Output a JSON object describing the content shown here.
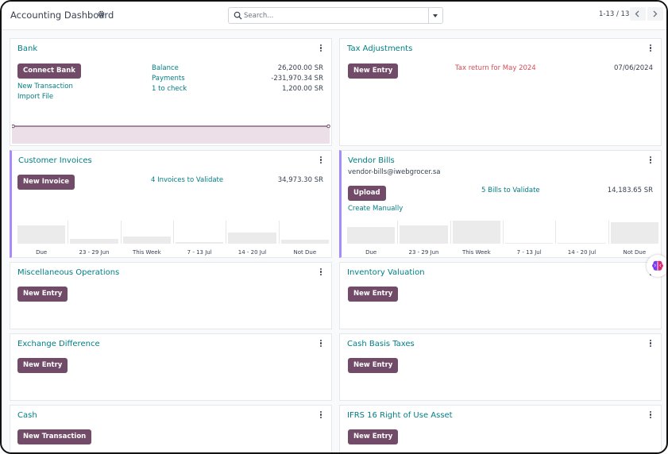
{
  "header": {
    "title": "Accounting Dashboard",
    "settings_icon": "gear-icon",
    "search_placeholder": "Search...",
    "pager": "1-13 / 13"
  },
  "cards": {
    "bank": {
      "title": "Bank",
      "button": "Connect Bank",
      "links": [
        "New Transaction",
        "Import File"
      ],
      "stats": [
        {
          "label": "Balance",
          "value": "26,200.00 SR"
        },
        {
          "label": "Payments",
          "value": "-231,970.34 SR"
        },
        {
          "label": "1 to check",
          "value": "1,200.00 SR"
        }
      ]
    },
    "tax": {
      "title": "Tax Adjustments",
      "button": "New Entry",
      "notice": "Tax return for May 2024",
      "date": "07/06/2024"
    },
    "customer_invoices": {
      "title": "Customer Invoices",
      "button": "New Invoice",
      "stat_label": "4 Invoices to Validate",
      "stat_value": "34,973.30 SR"
    },
    "vendor_bills": {
      "title": "Vendor Bills",
      "email": "vendor-bills@iwebgrocer.sa",
      "button": "Upload",
      "link": "Create Manually",
      "stat_label": "5 Bills to Validate",
      "stat_value": "14,183.65 SR"
    },
    "misc": {
      "title": "Miscellaneous Operations",
      "button": "New Entry"
    },
    "inventory": {
      "title": "Inventory Valuation",
      "button": "New Entry"
    },
    "exchange": {
      "title": "Exchange Difference",
      "button": "New Entry"
    },
    "cash_basis": {
      "title": "Cash Basis Taxes",
      "button": "New Entry"
    },
    "cash": {
      "title": "Cash",
      "button": "New Transaction"
    },
    "ifrs": {
      "title": "IFRS 16 Right of Use Asset",
      "button": "New Entry"
    }
  },
  "chart_data": [
    {
      "type": "bar",
      "categories": [
        "Due",
        "23 - 29 Jun",
        "This Week",
        "7 - 13 Jul",
        "14 - 20 Jul",
        "Not Due"
      ],
      "values": [
        0.8,
        0.2,
        0.3,
        0.08,
        0.5,
        0.16
      ]
    },
    {
      "type": "bar",
      "categories": [
        "Due",
        "23 - 29 Jun",
        "This Week",
        "7 - 13 Jul",
        "14 - 20 Jul",
        "Not Due"
      ],
      "values": [
        0.73,
        0.8,
        1.0,
        0.03,
        0.03,
        0.93
      ]
    }
  ],
  "colors": {
    "primary_button": "#714b67",
    "link": "#017e84",
    "warning_text": "#d44c59",
    "accent_border": "#a78bfa"
  }
}
